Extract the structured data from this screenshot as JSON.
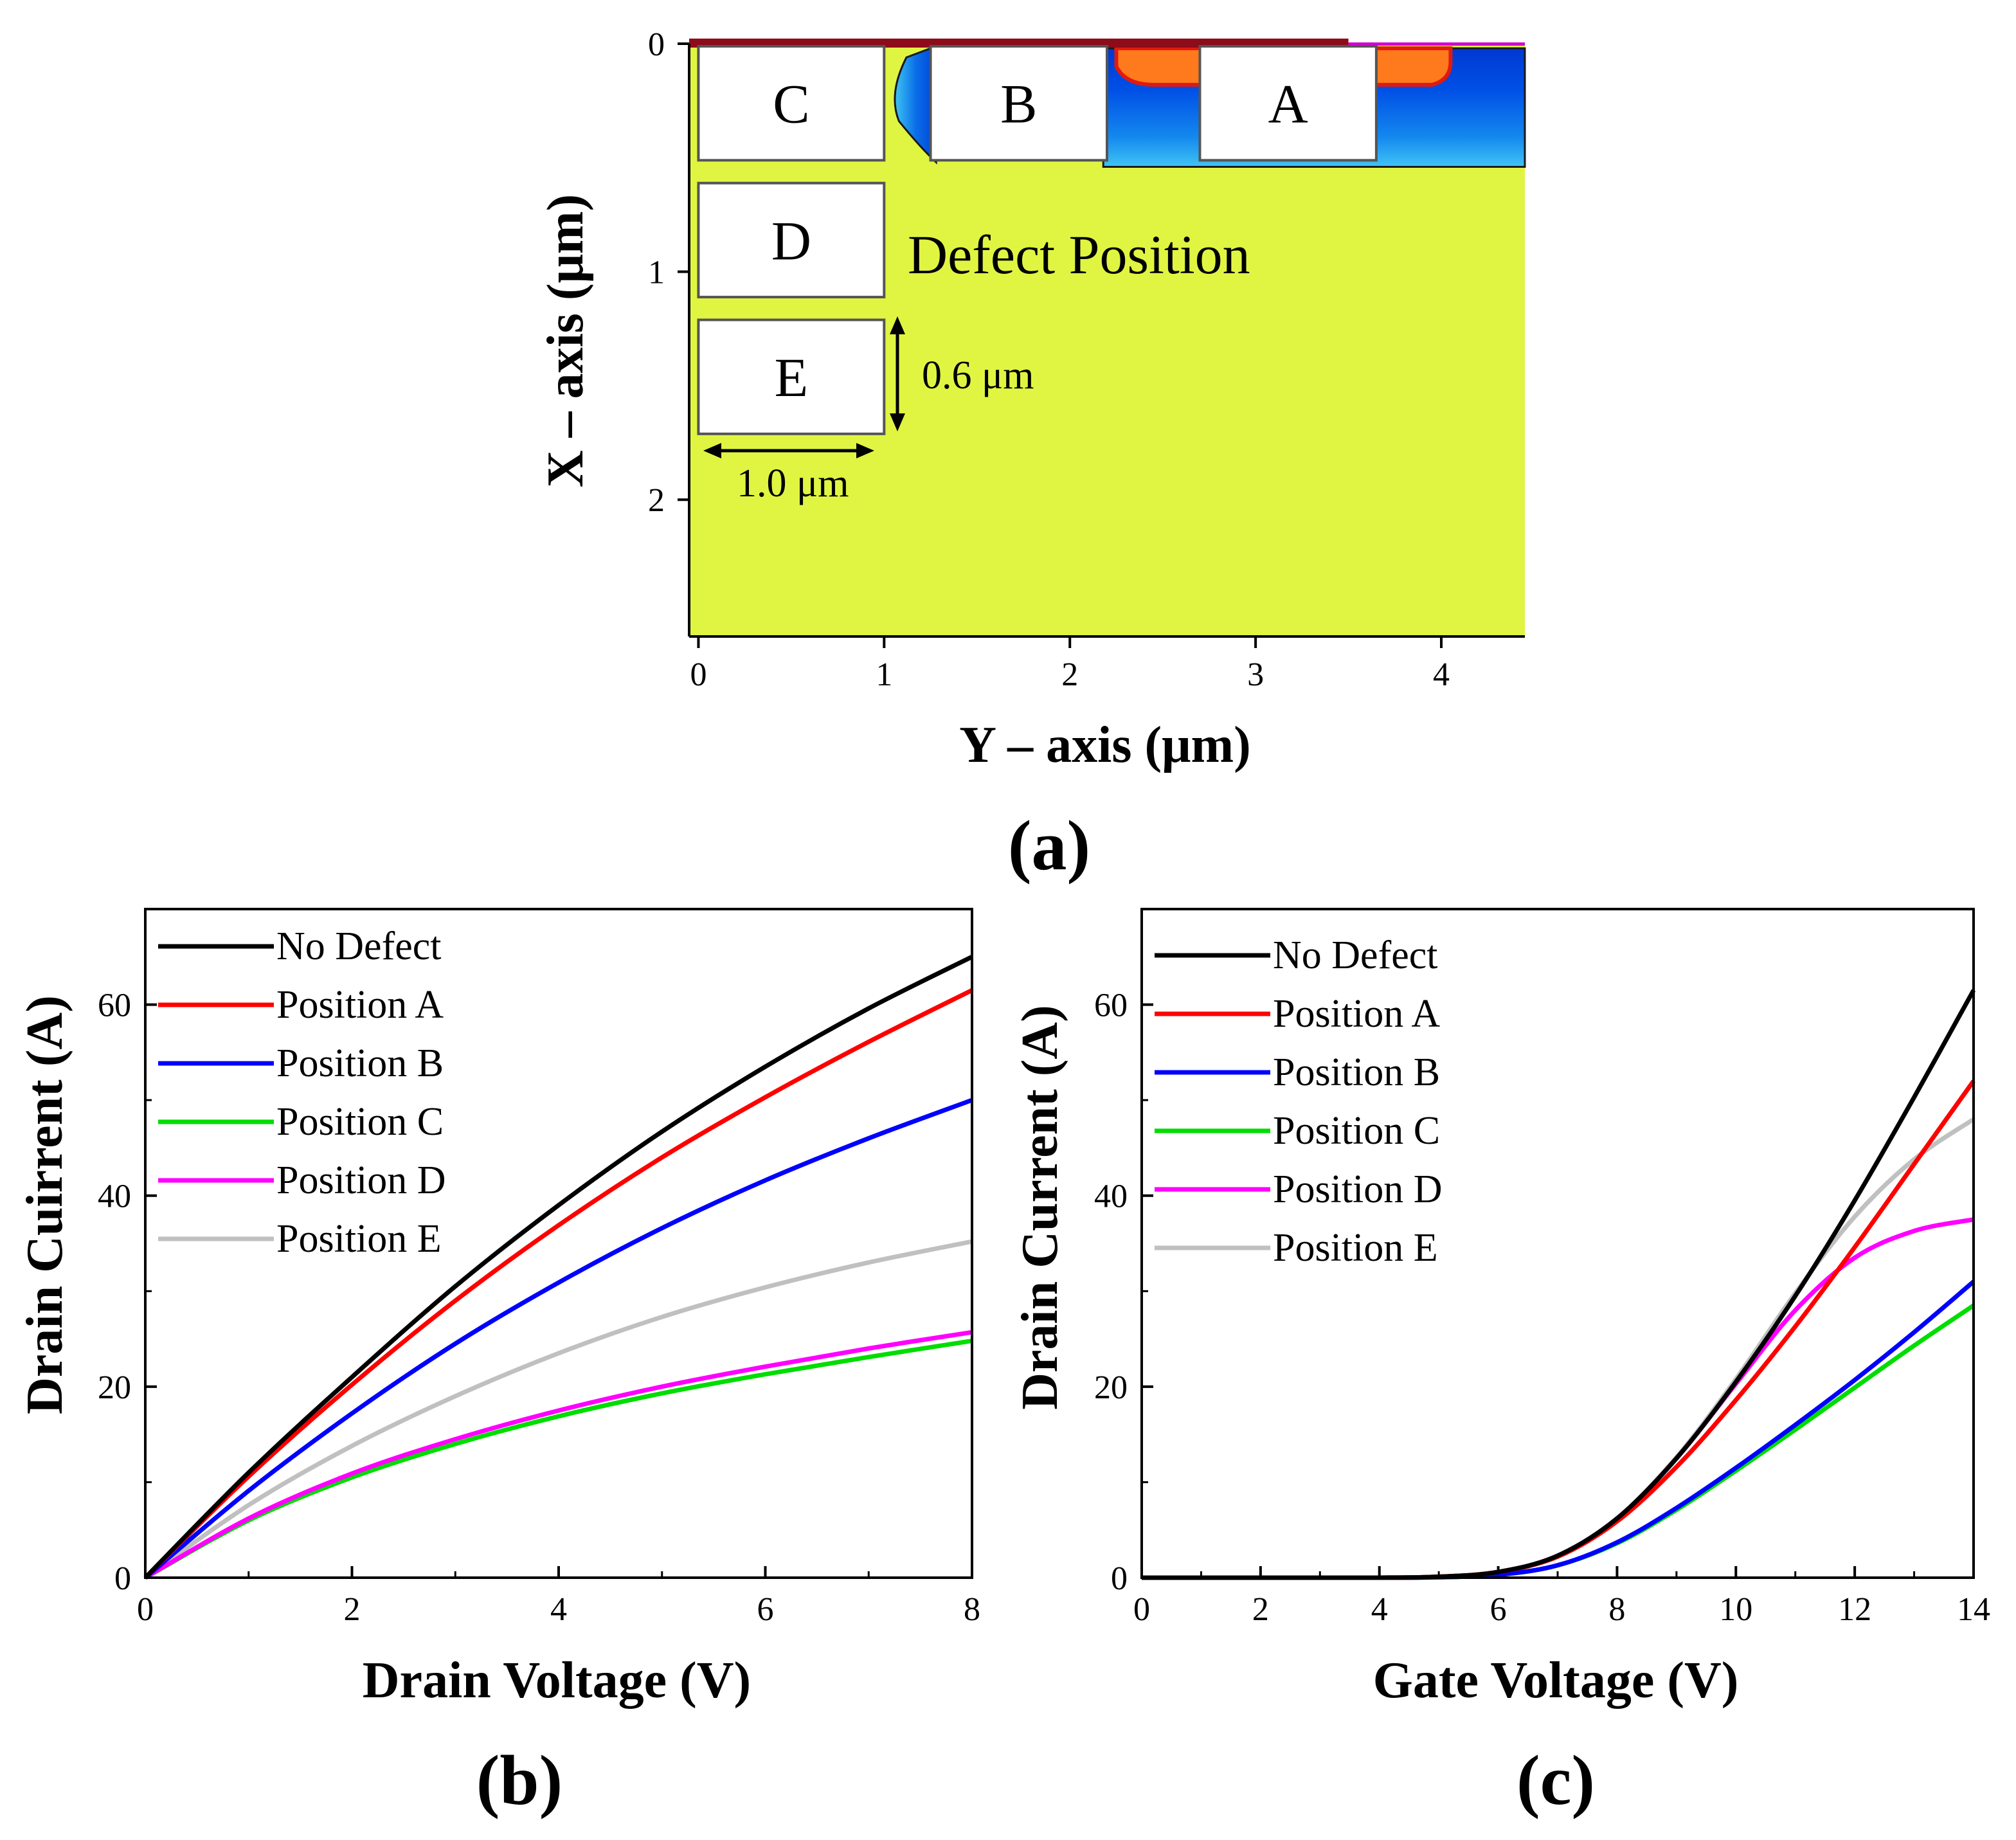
{
  "chart_data": [
    {
      "id": "a",
      "type": "heatmap",
      "panel_label": "(a)",
      "xlabel": "Y – axis (μm)",
      "ylabel": "X – axis (μm)",
      "xlim": [
        -0.05,
        4.45
      ],
      "ylim": [
        2.6,
        0
      ],
      "x_ticks": [
        0,
        1,
        2,
        3,
        4
      ],
      "y_ticks": [
        0,
        1,
        2
      ],
      "colors": {
        "background": "#e0f542",
        "channel_dark": "#003fd8",
        "channel_light": "#22aaee",
        "hot": "#ff7a1c",
        "hot_edge": "#e01a10",
        "contact": "#8e0b1a"
      },
      "defect_boxes": [
        {
          "label": "C",
          "x0": 0.0,
          "x1": 1.0,
          "y0": 0.0,
          "y1": 0.5
        },
        {
          "label": "D",
          "x0": 0.0,
          "x1": 1.0,
          "y0": 0.6,
          "y1": 1.1
        },
        {
          "label": "E",
          "x0": 0.0,
          "x1": 1.0,
          "y0": 1.2,
          "y1": 1.7
        },
        {
          "label": "B",
          "x0": 1.25,
          "x1": 2.2,
          "y0": 0.0,
          "y1": 0.5
        },
        {
          "label": "A",
          "x0": 2.7,
          "x1": 3.65,
          "y0": 0.0,
          "y1": 0.5
        }
      ],
      "annotation": "Defect Position",
      "dim_vertical": "0.6 μm",
      "dim_horizontal": "1.0 μm"
    },
    {
      "id": "b",
      "type": "line",
      "panel_label": "(b)",
      "xlabel": "Drain Voltage (V)",
      "ylabel": "Drain Cuirrent (A)",
      "xlim": [
        0,
        8
      ],
      "ylim": [
        0,
        70
      ],
      "x_ticks": [
        0,
        2,
        4,
        6,
        8
      ],
      "y_ticks": [
        0,
        20,
        40,
        60
      ],
      "legend": "top-left",
      "x": [
        0,
        1,
        2,
        3,
        4,
        5,
        6,
        7,
        8
      ],
      "series": [
        {
          "name": "No Defect",
          "color": "#000000",
          "values": [
            0,
            11.0,
            21.0,
            30.5,
            39.0,
            46.7,
            53.5,
            59.6,
            65.0
          ]
        },
        {
          "name": "Position A",
          "color": "#ff0000",
          "values": [
            0,
            10.6,
            20.2,
            29.0,
            36.9,
            44.0,
            50.3,
            56.1,
            61.5
          ]
        },
        {
          "name": "Position B",
          "color": "#0000ff",
          "values": [
            0,
            9.1,
            17.2,
            24.5,
            30.9,
            36.6,
            41.6,
            46.0,
            50.0
          ]
        },
        {
          "name": "Position C",
          "color": "#00dd00",
          "values": [
            0,
            6.0,
            10.5,
            14.0,
            16.9,
            19.3,
            21.3,
            23.1,
            24.8
          ]
        },
        {
          "name": "Position D",
          "color": "#ff00ff",
          "values": [
            0,
            6.2,
            10.9,
            14.5,
            17.5,
            20.0,
            22.1,
            24.0,
            25.7
          ]
        },
        {
          "name": "Position E",
          "color": "#c0c0c0",
          "values": [
            0,
            7.6,
            13.8,
            19.0,
            23.5,
            27.3,
            30.4,
            33.0,
            35.2
          ]
        }
      ]
    },
    {
      "id": "c",
      "type": "line",
      "panel_label": "(c)",
      "xlabel": "Gate Voltage (V)",
      "ylabel": "Drain Current (A)",
      "xlim": [
        0,
        14
      ],
      "ylim": [
        0,
        70
      ],
      "x_ticks": [
        0,
        2,
        4,
        6,
        8,
        10,
        12,
        14
      ],
      "y_ticks": [
        0,
        20,
        40,
        60
      ],
      "legend": "top-left",
      "x": [
        0,
        2,
        4,
        5,
        6,
        7,
        8,
        9,
        10,
        11,
        12,
        13,
        14
      ],
      "series": [
        {
          "name": "No Defect",
          "color": "#000000",
          "values": [
            0,
            0,
            0,
            0.1,
            0.6,
            2.3,
            6.2,
            12.5,
            20.5,
            29.5,
            39.5,
            50.3,
            61.5
          ]
        },
        {
          "name": "Position A",
          "color": "#ff0000",
          "values": [
            0,
            0,
            0,
            0.1,
            0.6,
            2.2,
            5.9,
            11.6,
            18.6,
            26.3,
            34.6,
            43.3,
            52.0
          ]
        },
        {
          "name": "Position B",
          "color": "#0000ff",
          "values": [
            0,
            0,
            0,
            0.05,
            0.3,
            1.3,
            3.7,
            7.3,
            11.5,
            16.0,
            20.7,
            25.7,
            31.0
          ]
        },
        {
          "name": "Position C",
          "color": "#00dd00",
          "values": [
            0,
            0,
            0,
            0.05,
            0.3,
            1.3,
            3.6,
            7.1,
            11.2,
            15.5,
            19.9,
            24.3,
            28.5
          ]
        },
        {
          "name": "Position D",
          "color": "#ff00ff",
          "values": [
            0,
            0,
            0,
            0.1,
            0.6,
            2.3,
            6.2,
            12.5,
            20.3,
            28.0,
            33.5,
            36.3,
            37.5
          ]
        },
        {
          "name": "Position E",
          "color": "#c0c0c0",
          "values": [
            0,
            0,
            0,
            0.1,
            0.6,
            2.3,
            6.2,
            12.6,
            20.8,
            29.8,
            37.8,
            43.8,
            48.0
          ]
        }
      ]
    }
  ]
}
